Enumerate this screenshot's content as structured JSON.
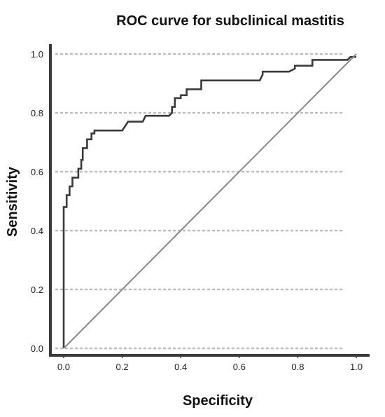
{
  "chart_data": {
    "type": "line",
    "title": "ROC curve for subclinical mastitis",
    "xlabel": "Specificity",
    "ylabel": "Sensitivity",
    "xlim": [
      0,
      1
    ],
    "ylim": [
      0,
      1
    ],
    "x_ticks": [
      "0.0",
      "0.2",
      "0.4",
      "0.6",
      "0.8",
      "1.0"
    ],
    "y_ticks": [
      "0.0",
      "0.2",
      "0.4",
      "0.6",
      "0.8",
      "1.0"
    ],
    "grid": "horizontal dotted",
    "series": [
      {
        "color": "#3a3a3a",
        "x": [
          0,
          0,
          0.01,
          0.01,
          0.02,
          0.02,
          0.03,
          0.03,
          0.05,
          0.05,
          0.06,
          0.06,
          0.065,
          0.065,
          0.08,
          0.08,
          0.095,
          0.095,
          0.105,
          0.105,
          0.2,
          0.22,
          0.27,
          0.28,
          0.36,
          0.37,
          0.37,
          0.38,
          0.38,
          0.4,
          0.4,
          0.42,
          0.42,
          0.47,
          0.47,
          0.67,
          0.68,
          0.68,
          0.77,
          0.79,
          0.79,
          0.85,
          0.85,
          0.97,
          0.98,
          1
        ],
        "y": [
          0,
          0.48,
          0.48,
          0.52,
          0.52,
          0.55,
          0.55,
          0.58,
          0.58,
          0.61,
          0.61,
          0.64,
          0.64,
          0.68,
          0.68,
          0.71,
          0.71,
          0.73,
          0.73,
          0.74,
          0.74,
          0.77,
          0.77,
          0.79,
          0.79,
          0.8,
          0.82,
          0.82,
          0.85,
          0.85,
          0.86,
          0.86,
          0.88,
          0.88,
          0.91,
          0.91,
          0.93,
          0.94,
          0.94,
          0.95,
          0.96,
          0.96,
          0.98,
          0.98,
          0.99,
          0.99
        ]
      },
      {
        "color": "#888888",
        "x": [
          0,
          1
        ],
        "y": [
          0,
          1
        ]
      }
    ]
  }
}
